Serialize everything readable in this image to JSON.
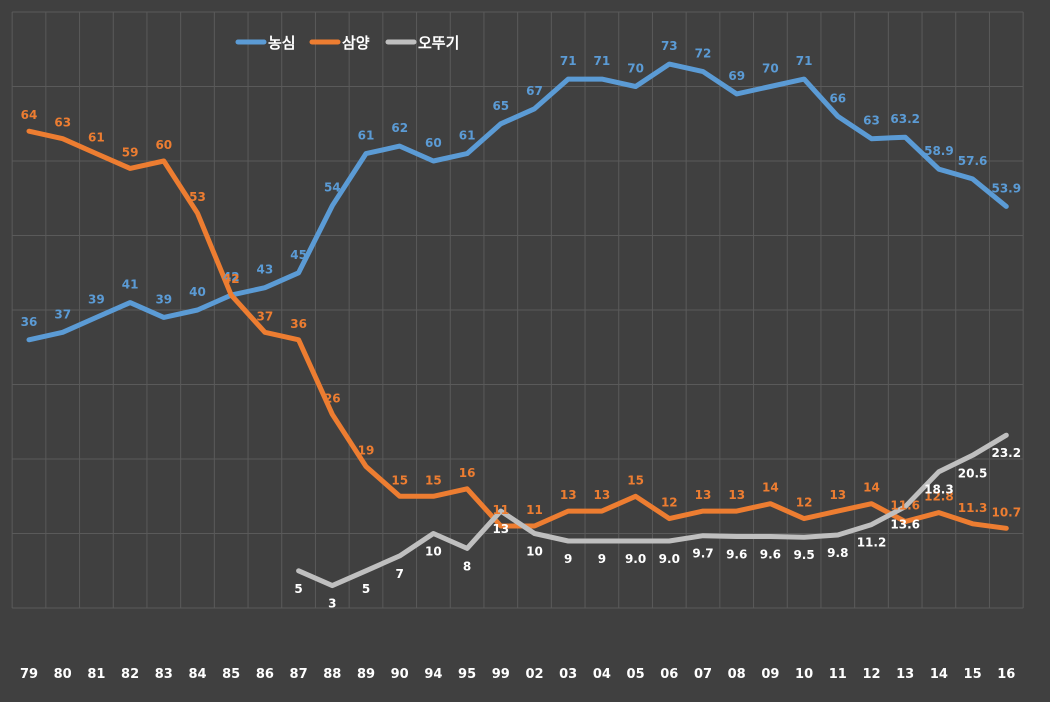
{
  "chart_data": {
    "type": "line",
    "title": "",
    "xlabel": "",
    "ylabel": "",
    "ylim": [
      0,
      80
    ],
    "grid": "vertical",
    "legend_position": "top",
    "categories": [
      "79",
      "80",
      "81",
      "82",
      "83",
      "84",
      "85",
      "86",
      "87",
      "88",
      "89",
      "90",
      "94",
      "95",
      "99",
      "02",
      "03",
      "04",
      "05",
      "06",
      "07",
      "08",
      "09",
      "10",
      "11",
      "12",
      "13",
      "14",
      "15",
      "16"
    ],
    "series": [
      {
        "name": "농심",
        "color": "#5b9bd5",
        "values": [
          36,
          37,
          39,
          41,
          39,
          40,
          42,
          43,
          45,
          54,
          61,
          62,
          60,
          61,
          65,
          67,
          71,
          71,
          70,
          73,
          72,
          69,
          70,
          71,
          66,
          63,
          63.2,
          58.9,
          57.6,
          53.9
        ],
        "labels": [
          "36",
          "37",
          "39",
          "41",
          "39",
          "40",
          "42",
          "43",
          "45",
          "54",
          "61",
          "62",
          "60",
          "61",
          "65",
          "67",
          "71",
          "71",
          "70",
          "73",
          "72",
          "69",
          "70",
          "71",
          "66",
          "63",
          "63.2",
          "58.9",
          "57.6",
          "53.9"
        ]
      },
      {
        "name": "삼양",
        "color": "#ed7d31",
        "values": [
          64,
          63,
          61,
          59,
          60,
          53,
          42,
          37,
          36,
          26,
          19,
          15,
          15,
          16,
          11,
          11,
          13,
          13,
          15,
          12,
          13,
          13,
          14,
          12,
          13,
          14,
          11.6,
          12.8,
          11.3,
          10.7
        ],
        "labels": [
          "64",
          "63",
          "61",
          "59",
          "60",
          "53",
          "42",
          "37",
          "36",
          "26",
          "19",
          "15",
          "15",
          "16",
          "11",
          "11",
          "13",
          "13",
          "15",
          "12",
          "13",
          "13",
          "14",
          "12",
          "13",
          "14",
          "11.6",
          "12.8",
          "11.3",
          "10.7"
        ]
      },
      {
        "name": "오뚜기",
        "color": "#bfbfbf",
        "values": [
          null,
          null,
          null,
          null,
          null,
          null,
          null,
          null,
          5,
          3,
          5,
          7,
          10,
          8,
          13,
          10,
          9,
          9,
          9.0,
          9.0,
          9.7,
          9.6,
          9.6,
          9.5,
          9.8,
          11.2,
          13.6,
          18.3,
          20.5,
          23.2
        ],
        "labels": [
          null,
          null,
          null,
          null,
          null,
          null,
          null,
          null,
          "5",
          "3",
          "5",
          "7",
          "10",
          "8",
          "13",
          "10",
          "9",
          "9",
          "9.0",
          "9.0",
          "9.7",
          "9.6",
          "9.6",
          "9.5",
          "9.8",
          "11.2",
          "13.6",
          "18.3",
          "20.5",
          "23.2"
        ]
      }
    ]
  }
}
